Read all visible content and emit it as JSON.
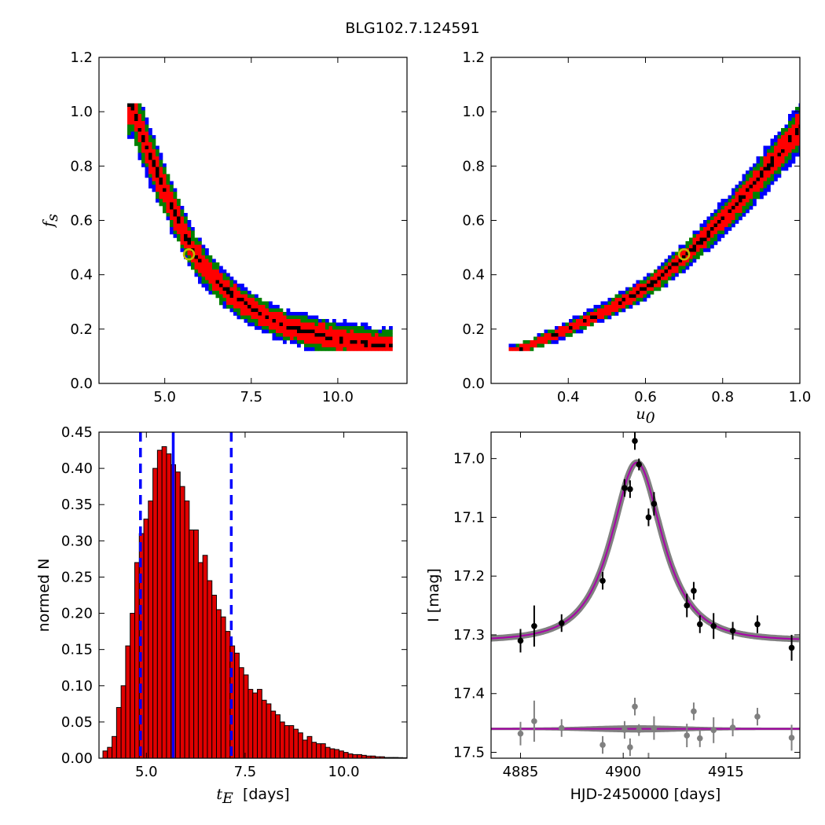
{
  "title": "BLG102.7.124591",
  "colors": {
    "level_outer": "#0000ff",
    "level_mid": "#008000",
    "level_inner": "#ff0000",
    "level_core": "#000000",
    "marker": "#bfbf00",
    "hist_bar": "#e00000",
    "vline": "#0000ff",
    "model": "#aa00aa",
    "model_band": "#808080",
    "data": "#000000",
    "resid": "#808080"
  },
  "chart_data": [
    {
      "id": "tE_fs",
      "type": "heatmap",
      "xlabel": "",
      "ylabel": "f_s",
      "xlim": [
        3.1,
        12.0
      ],
      "ylim": [
        0.0,
        1.2
      ],
      "xticks": [
        "5.0",
        "7.5",
        "10.0"
      ],
      "xtick_values": [
        5.0,
        7.5,
        10.0
      ],
      "yticks": [
        "0.0",
        "0.2",
        "0.4",
        "0.6",
        "0.8",
        "1.0",
        "1.2"
      ],
      "ytick_values": [
        0.0,
        0.2,
        0.4,
        0.6,
        0.8,
        1.0,
        1.2
      ],
      "best_fit": {
        "tE": 5.7,
        "fs": 0.475
      },
      "ridge": [
        [
          4.1,
          1.02
        ],
        [
          4.3,
          0.93
        ],
        [
          4.6,
          0.83
        ],
        [
          4.9,
          0.74
        ],
        [
          5.2,
          0.65
        ],
        [
          5.5,
          0.57
        ],
        [
          5.8,
          0.49
        ],
        [
          6.2,
          0.42
        ],
        [
          6.7,
          0.35
        ],
        [
          7.2,
          0.3
        ],
        [
          7.8,
          0.25
        ],
        [
          8.5,
          0.21
        ],
        [
          9.4,
          0.18
        ],
        [
          10.4,
          0.155
        ],
        [
          11.5,
          0.135
        ]
      ],
      "level_half_widths": {
        "outer": 1.0,
        "mid": 0.84,
        "inner": 0.58,
        "core": 0.13
      }
    },
    {
      "id": "u0_fs",
      "type": "heatmap",
      "xlabel": "u_0",
      "ylabel": "",
      "xlim": [
        0.2,
        1.0
      ],
      "ylim": [
        0.0,
        1.2
      ],
      "xticks": [
        "0.4",
        "0.6",
        "0.8",
        "1.0"
      ],
      "xtick_values": [
        0.4,
        0.6,
        0.8,
        1.0
      ],
      "yticks": [
        "0.0",
        "0.2",
        "0.4",
        "0.6",
        "0.8",
        "1.0",
        "1.2"
      ],
      "ytick_values": [
        0.0,
        0.2,
        0.4,
        0.6,
        0.8,
        1.0,
        1.2
      ],
      "best_fit": {
        "u0": 0.7,
        "fs": 0.475
      },
      "ridge": [
        [
          0.26,
          0.12
        ],
        [
          0.3,
          0.14
        ],
        [
          0.35,
          0.17
        ],
        [
          0.4,
          0.2
        ],
        [
          0.45,
          0.235
        ],
        [
          0.5,
          0.27
        ],
        [
          0.55,
          0.31
        ],
        [
          0.6,
          0.35
        ],
        [
          0.65,
          0.405
        ],
        [
          0.7,
          0.465
        ],
        [
          0.75,
          0.53
        ],
        [
          0.8,
          0.605
        ],
        [
          0.85,
          0.68
        ],
        [
          0.9,
          0.765
        ],
        [
          0.95,
          0.85
        ],
        [
          1.0,
          0.94
        ]
      ],
      "level_half_widths": {
        "outer": 1.0,
        "mid": 0.8,
        "inner": 0.55,
        "core": 0.12
      }
    },
    {
      "id": "tE_hist",
      "type": "bar",
      "xlabel": "t_E  [days]",
      "ylabel": "normed N",
      "xlim": [
        3.8,
        11.6
      ],
      "ylim": [
        0.0,
        0.45
      ],
      "xticks": [
        "5.0",
        "7.5",
        "10.0"
      ],
      "xtick_values": [
        5.0,
        7.5,
        10.0
      ],
      "yticks": [
        "0.00",
        "0.05",
        "0.10",
        "0.15",
        "0.20",
        "0.25",
        "0.30",
        "0.35",
        "0.40",
        "0.45"
      ],
      "ytick_values": [
        0.0,
        0.05,
        0.1,
        0.15,
        0.2,
        0.25,
        0.3,
        0.35,
        0.4,
        0.45
      ],
      "bin_start": 3.9,
      "bin_width": 0.115,
      "values": [
        0.01,
        0.015,
        0.03,
        0.07,
        0.1,
        0.155,
        0.2,
        0.27,
        0.31,
        0.33,
        0.355,
        0.4,
        0.425,
        0.43,
        0.42,
        0.405,
        0.395,
        0.375,
        0.355,
        0.315,
        0.315,
        0.27,
        0.28,
        0.245,
        0.225,
        0.205,
        0.195,
        0.175,
        0.155,
        0.145,
        0.125,
        0.115,
        0.095,
        0.09,
        0.095,
        0.08,
        0.075,
        0.065,
        0.06,
        0.05,
        0.045,
        0.045,
        0.04,
        0.035,
        0.025,
        0.03,
        0.022,
        0.02,
        0.02,
        0.015,
        0.013,
        0.012,
        0.01,
        0.008,
        0.006,
        0.005,
        0.005,
        0.004,
        0.003,
        0.003,
        0.002,
        0.002,
        0.001,
        0.001,
        0.001,
        0.0008,
        0.0006,
        0.0005
      ],
      "median": 5.68,
      "lower": 4.85,
      "upper": 7.15
    },
    {
      "id": "lightcurve",
      "type": "scatter",
      "xlabel": "HJD-2450000 [days]",
      "ylabel": "I [mag]",
      "xlim": [
        4880.7,
        4925.8
      ],
      "ylim": [
        17.51,
        16.955
      ],
      "xticks": [
        "4885",
        "4900",
        "4915"
      ],
      "xtick_values": [
        4885,
        4900,
        4915
      ],
      "yticks": [
        "17.0",
        "17.1",
        "17.2",
        "17.3",
        "17.4",
        "17.5"
      ],
      "ytick_values": [
        17.0,
        17.1,
        17.2,
        17.3,
        17.4,
        17.5
      ],
      "model": {
        "t0": 4902.0,
        "tE": 5.7,
        "u0": 0.7,
        "fs": 0.475,
        "base_mag": 17.31
      },
      "resid_baseline": 17.46,
      "points": [
        {
          "t": 4885.0,
          "mag": 17.31,
          "err": 0.02
        },
        {
          "t": 4887.0,
          "mag": 17.285,
          "err": 0.035
        },
        {
          "t": 4891.0,
          "mag": 17.28,
          "err": 0.015
        },
        {
          "t": 4897.0,
          "mag": 17.208,
          "err": 0.015
        },
        {
          "t": 4900.2,
          "mag": 17.05,
          "err": 0.015
        },
        {
          "t": 4901.0,
          "mag": 17.052,
          "err": 0.015
        },
        {
          "t": 4901.7,
          "mag": 16.97,
          "err": 0.015
        },
        {
          "t": 4902.3,
          "mag": 17.01,
          "err": 0.01
        },
        {
          "t": 4903.7,
          "mag": 17.1,
          "err": 0.015
        },
        {
          "t": 4904.5,
          "mag": 17.077,
          "err": 0.02
        },
        {
          "t": 4909.3,
          "mag": 17.25,
          "err": 0.02
        },
        {
          "t": 4910.3,
          "mag": 17.225,
          "err": 0.015
        },
        {
          "t": 4911.2,
          "mag": 17.282,
          "err": 0.015
        },
        {
          "t": 4913.2,
          "mag": 17.285,
          "err": 0.022
        },
        {
          "t": 4916.0,
          "mag": 17.293,
          "err": 0.015
        },
        {
          "t": 4919.6,
          "mag": 17.282,
          "err": 0.015
        },
        {
          "t": 4924.6,
          "mag": 17.322,
          "err": 0.022
        }
      ]
    }
  ]
}
